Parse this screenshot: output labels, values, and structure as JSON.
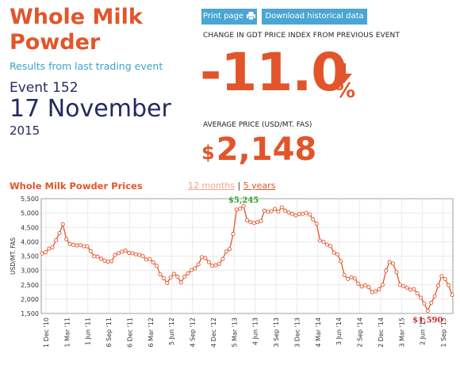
{
  "product": {
    "title": "Whole Milk Powder"
  },
  "subtitle": "Results from last trading event",
  "event": {
    "number": "Event 152",
    "date": "17 November",
    "year": "2015"
  },
  "buttons": {
    "print": "Print page",
    "download": "Download historical data"
  },
  "change": {
    "label": "CHANGE IN GDT PRICE INDEX FROM PREVIOUS EVENT",
    "value": "-11.0",
    "unit": "%",
    "direction": "down",
    "color": "#e2552b"
  },
  "average": {
    "label": "AVERAGE PRICE (USD/MT. FAS)",
    "currency": "$",
    "value": "2,148"
  },
  "chart_section": {
    "title": "Whole Milk Powder Prices",
    "range_options": [
      "12 months",
      "5 years"
    ],
    "selected_range": "5 years",
    "separator": "|"
  },
  "colors": {
    "accent": "#e2552b",
    "navy": "#242a5e",
    "button": "#4aa6d2",
    "max_label": "#2aa52a",
    "min_label": "#d42a2a"
  },
  "chart_data": {
    "type": "line",
    "ylabel": "USD/MT. FAS",
    "ylim": [
      1500,
      5500
    ],
    "yticks": [
      "1,500",
      "2,000",
      "2,500",
      "3,000",
      "3,500",
      "4,000",
      "4,500",
      "5,000",
      "5,500"
    ],
    "xticks": [
      "1 Dec '10",
      "1 Mar '11",
      "1 Jun '11",
      "6 Sep '11",
      "6 Dec '11",
      "6 Mar '12",
      "5 Jun '12",
      "4 Sep '12",
      "4 Dec '12",
      "5 Mar '13",
      "4 Jun '13",
      "3 Sep '13",
      "3 Dec '13",
      "4 Mar '14",
      "3 Jun '14",
      "2 Sep '14",
      "2 Dec '14",
      "3 Mar '15",
      "2 Jun '15",
      "1 Sep '15"
    ],
    "annotations": [
      {
        "text": "$5,245",
        "type": "max"
      },
      {
        "text": "$1,590",
        "type": "min"
      }
    ],
    "series": [
      {
        "values": [
          3590,
          3630,
          3760,
          3800,
          4050,
          4300,
          4610,
          4090,
          3920,
          3890,
          3870,
          3880,
          3840,
          3840,
          3670,
          3490,
          3480,
          3410,
          3340,
          3310,
          3320,
          3540,
          3600,
          3650,
          3690,
          3610,
          3600,
          3560,
          3540,
          3500,
          3380,
          3400,
          3280,
          3160,
          2860,
          2730,
          2560,
          2750,
          2880,
          2780,
          2580,
          2780,
          2900,
          3010,
          3070,
          3210,
          3460,
          3430,
          3290,
          3160,
          3180,
          3230,
          3400,
          3660,
          3740,
          4270,
          5120,
          5150,
          5245,
          4750,
          4680,
          4650,
          4680,
          4720,
          5080,
          5050,
          5060,
          5140,
          5050,
          5200,
          5080,
          5020,
          4970,
          4920,
          4960,
          4970,
          5000,
          4950,
          4780,
          4630,
          4040,
          4000,
          3900,
          3850,
          3620,
          3560,
          3320,
          2840,
          2700,
          2760,
          2720,
          2540,
          2440,
          2480,
          2420,
          2240,
          2270,
          2340,
          2500,
          2990,
          3290,
          3240,
          2940,
          2500,
          2450,
          2400,
          2330,
          2350,
          2200,
          2050,
          1850,
          1590,
          1870,
          2100,
          2470,
          2800,
          2700,
          2480,
          2148
        ]
      }
    ]
  }
}
